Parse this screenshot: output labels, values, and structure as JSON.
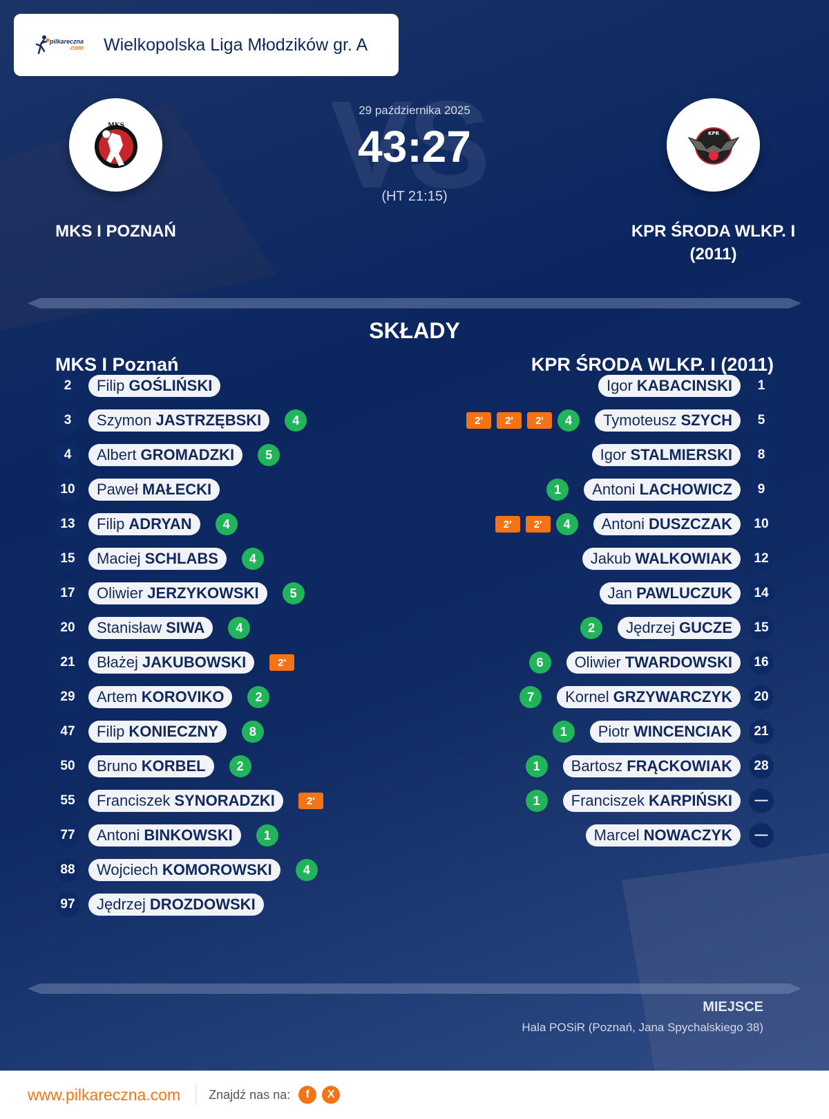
{
  "header": {
    "brand_logo_text": "pilkareczna",
    "brand_logo_suffix": ".com",
    "league": "Wielkopolska Liga Młodzików gr. A"
  },
  "match": {
    "date": "29 października 2025",
    "score": "43:27",
    "halftime": "(HT 21:15)",
    "vs_watermark": "VS",
    "home": {
      "name_line1": "MKS I POZNAŃ",
      "name_line2": ""
    },
    "away": {
      "name_line1": "KPR ŚRODA WLKP. I",
      "name_line2": "(2011)"
    }
  },
  "lineups": {
    "title": "SKŁADY",
    "home": {
      "team": "MKS I Poznań",
      "players": [
        {
          "number": "2",
          "first": "Filip",
          "last": "GOŚLIŃSKI",
          "goals": "",
          "suspensions": []
        },
        {
          "number": "3",
          "first": "Szymon",
          "last": "JASTRZĘBSKI",
          "goals": "4",
          "suspensions": []
        },
        {
          "number": "4",
          "first": "Albert",
          "last": "GROMADZKI",
          "goals": "5",
          "suspensions": []
        },
        {
          "number": "10",
          "first": "Paweł",
          "last": "MAŁECKI",
          "goals": "",
          "suspensions": []
        },
        {
          "number": "13",
          "first": "Filip",
          "last": "ADRYAN",
          "goals": "4",
          "suspensions": []
        },
        {
          "number": "15",
          "first": "Maciej",
          "last": "SCHLABS",
          "goals": "4",
          "suspensions": []
        },
        {
          "number": "17",
          "first": "Oliwier",
          "last": "JERZYKOWSKI",
          "goals": "5",
          "suspensions": []
        },
        {
          "number": "20",
          "first": "Stanisław",
          "last": "SIWA",
          "goals": "4",
          "suspensions": []
        },
        {
          "number": "21",
          "first": "Błażej",
          "last": "JAKUBOWSKI",
          "goals": "",
          "suspensions": [
            "2'"
          ]
        },
        {
          "number": "29",
          "first": "Artem",
          "last": "KOROVIKO",
          "goals": "2",
          "suspensions": []
        },
        {
          "number": "47",
          "first": "Filip",
          "last": "KONIECZNY",
          "goals": "8",
          "suspensions": []
        },
        {
          "number": "50",
          "first": "Bruno",
          "last": "KORBEL",
          "goals": "2",
          "suspensions": []
        },
        {
          "number": "55",
          "first": "Franciszek",
          "last": "SYNORADZKI",
          "goals": "",
          "suspensions": [
            "2'"
          ]
        },
        {
          "number": "77",
          "first": "Antoni",
          "last": "BINKOWSKI",
          "goals": "1",
          "suspensions": []
        },
        {
          "number": "88",
          "first": "Wojciech",
          "last": "KOMOROWSKI",
          "goals": "4",
          "suspensions": []
        },
        {
          "number": "97",
          "first": "Jędrzej",
          "last": "DROZDOWSKI",
          "goals": "",
          "suspensions": []
        }
      ]
    },
    "away": {
      "team": "KPR ŚRODA WLKP. I (2011)",
      "players": [
        {
          "number": "1",
          "first": "Igor",
          "last": "KABACINSKI",
          "goals": "",
          "suspensions": []
        },
        {
          "number": "5",
          "first": "Tymoteusz",
          "last": "SZYCH",
          "goals": "4",
          "suspensions": [
            "2'",
            "2'",
            "2'"
          ]
        },
        {
          "number": "8",
          "first": "Igor",
          "last": "STALMIERSKI",
          "goals": "",
          "suspensions": []
        },
        {
          "number": "9",
          "first": "Antoni",
          "last": "LACHOWICZ",
          "goals": "1",
          "suspensions": []
        },
        {
          "number": "10",
          "first": "Antoni",
          "last": "DUSZCZAK",
          "goals": "4",
          "suspensions": [
            "2'",
            "2'"
          ]
        },
        {
          "number": "12",
          "first": "Jakub",
          "last": "WALKOWIAK",
          "goals": "",
          "suspensions": []
        },
        {
          "number": "14",
          "first": "Jan",
          "last": "PAWLUCZUK",
          "goals": "",
          "suspensions": []
        },
        {
          "number": "15",
          "first": "Jędrzej",
          "last": "GUCZE",
          "goals": "2",
          "suspensions": []
        },
        {
          "number": "16",
          "first": "Oliwier",
          "last": "TWARDOWSKI",
          "goals": "6",
          "suspensions": []
        },
        {
          "number": "20",
          "first": "Kornel",
          "last": "GRZYWARCZYK",
          "goals": "7",
          "suspensions": []
        },
        {
          "number": "21",
          "first": "Piotr",
          "last": "WINCENCIAK",
          "goals": "1",
          "suspensions": []
        },
        {
          "number": "28",
          "first": "Bartosz",
          "last": "FRĄCKOWIAK",
          "goals": "1",
          "suspensions": []
        },
        {
          "number": "—",
          "first": "Franciszek",
          "last": "KARPIŃSKI",
          "goals": "1",
          "suspensions": []
        },
        {
          "number": "—",
          "first": "Marcel",
          "last": "NOWACZYK",
          "goals": "",
          "suspensions": []
        }
      ]
    }
  },
  "venue": {
    "label": "MIEJSCE",
    "value": "Hala POSiR (Poznań, Jana Spychalskiego 38)"
  },
  "footer": {
    "url": "www.pilkareczna.com",
    "find_us": "Znajdź nas na:",
    "social": [
      {
        "name": "facebook",
        "glyph": "f"
      },
      {
        "name": "x",
        "glyph": "X"
      }
    ]
  },
  "colors": {
    "goals": "#22b45a",
    "suspension": "#f47316",
    "background": "#0c2660",
    "accent": "#f47316"
  }
}
